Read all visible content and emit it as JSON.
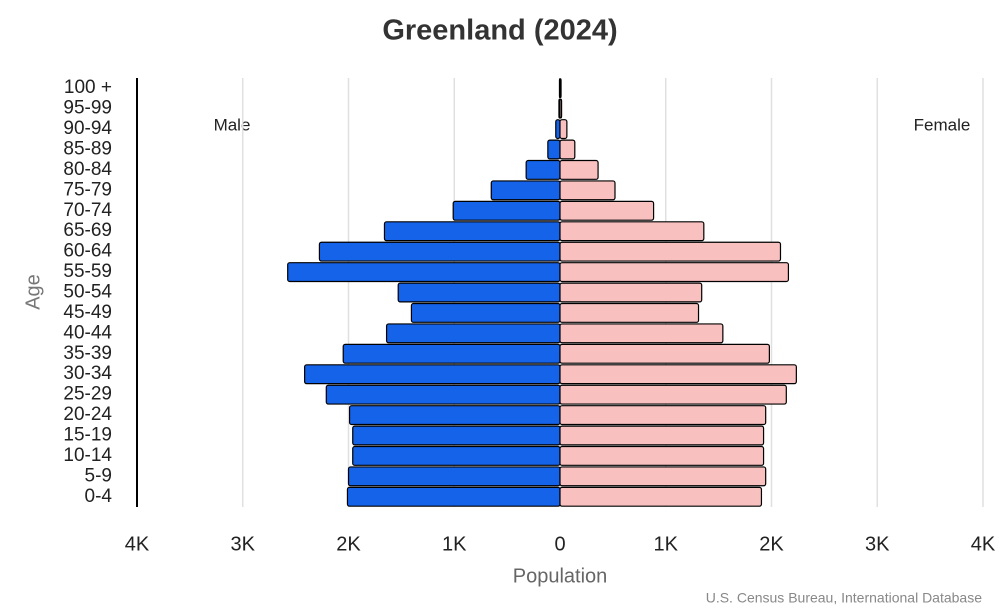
{
  "chart_data": {
    "type": "pyramid",
    "title": "Greenland (2024)",
    "x_label": "Population",
    "y_label": "Age",
    "source": "U.S. Census Bureau, International Database",
    "categories": [
      "0-4",
      "5-9",
      "10-14",
      "15-19",
      "20-24",
      "25-29",
      "30-34",
      "35-39",
      "40-44",
      "45-49",
      "50-54",
      "55-59",
      "60-64",
      "65-69",
      "70-74",
      "75-79",
      "80-84",
      "85-89",
      "90-94",
      "95-99",
      "100 +"
    ],
    "series": [
      {
        "name": "Male",
        "color": "#1563e8",
        "values": [
          -2010,
          -2000,
          -1960,
          -1960,
          -1990,
          -2210,
          -2415,
          -2050,
          -1640,
          -1405,
          -1530,
          -2575,
          -2275,
          -1660,
          -1010,
          -650,
          -320,
          -115,
          -40,
          -10,
          -5
        ]
      },
      {
        "name": "Female",
        "color": "#f9c0c0",
        "values": [
          1905,
          1945,
          1925,
          1925,
          1945,
          2140,
          2235,
          1980,
          1540,
          1310,
          1340,
          2160,
          2085,
          1360,
          885,
          520,
          360,
          140,
          65,
          15,
          10
        ]
      }
    ],
    "xlim": [
      -4000,
      4000
    ],
    "xticks": [
      {
        "value": -4000,
        "label": "4K"
      },
      {
        "value": -3000,
        "label": "3K"
      },
      {
        "value": -2000,
        "label": "2K"
      },
      {
        "value": -1000,
        "label": "1K"
      },
      0,
      {
        "value": 1000,
        "label": "1K"
      },
      {
        "value": 2000,
        "label": "2K"
      },
      {
        "value": 3000,
        "label": "3K"
      },
      {
        "value": 4000,
        "label": "4K"
      }
    ],
    "grid": true
  }
}
